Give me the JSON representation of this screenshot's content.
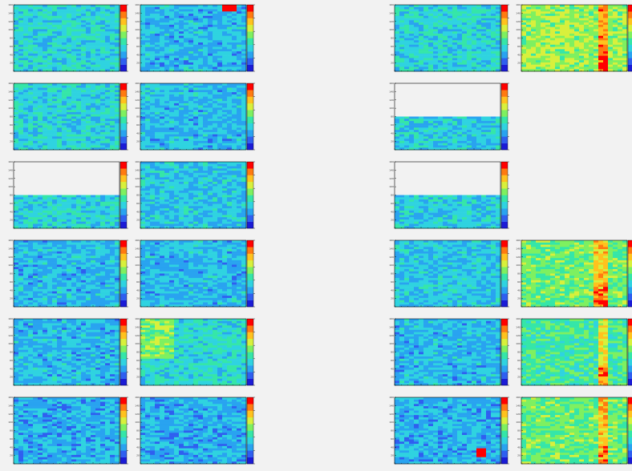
{
  "title": "",
  "colors": {
    "background": "#f2f2f2",
    "empty_region": "#f2f2f2",
    "frame": "#000000",
    "palette_low": "#1b1bd6",
    "palette_high": "#ff0000"
  },
  "chart_data": {
    "type": "heatmap",
    "layout": {
      "rows": 6,
      "cols": 4
    },
    "x_range": [
      0,
      64
    ],
    "y_range": [
      0,
      160
    ],
    "y_ticks": [
      "0",
      "20",
      "40",
      "60",
      "80",
      "100",
      "120",
      "140",
      "160"
    ],
    "colorbar": true,
    "palette": [
      "#1b1bd6",
      "#2f5ff0",
      "#29a3f0",
      "#2fd3e0",
      "#35e6a8",
      "#7ef060",
      "#d8f03c",
      "#ffc21e",
      "#ff7a10",
      "#ff0000"
    ],
    "panels": [
      {
        "row": 0,
        "col": 0,
        "level": 0.36,
        "empty_top_fraction": 0
      },
      {
        "row": 0,
        "col": 1,
        "level": 0.3,
        "empty_top_fraction": 0,
        "hotspot": {
          "x": 0.84,
          "y": 0.97,
          "level": 0.98
        }
      },
      {
        "row": 0,
        "col": 2,
        "level": 0.36,
        "empty_top_fraction": 0
      },
      {
        "row": 0,
        "col": 3,
        "level": 0.58,
        "empty_top_fraction": 0,
        "hot_x_band": [
          0.74,
          0.84
        ]
      },
      {
        "row": 1,
        "col": 0,
        "level": 0.36,
        "empty_top_fraction": 0
      },
      {
        "row": 1,
        "col": 1,
        "level": 0.3,
        "empty_top_fraction": 0
      },
      {
        "row": 1,
        "col": 2,
        "level": 0.34,
        "empty_top_fraction": 0.5
      },
      {
        "row": 2,
        "col": 0,
        "level": 0.36,
        "empty_top_fraction": 0.5
      },
      {
        "row": 2,
        "col": 1,
        "level": 0.32,
        "empty_top_fraction": 0
      },
      {
        "row": 2,
        "col": 2,
        "level": 0.34,
        "empty_top_fraction": 0.5
      },
      {
        "row": 3,
        "col": 0,
        "level": 0.3,
        "empty_top_fraction": 0
      },
      {
        "row": 3,
        "col": 1,
        "level": 0.3,
        "empty_top_fraction": 0
      },
      {
        "row": 3,
        "col": 2,
        "level": 0.32,
        "empty_top_fraction": 0
      },
      {
        "row": 3,
        "col": 3,
        "level": 0.52,
        "empty_top_fraction": 0,
        "hot_x_band": [
          0.7,
          0.84
        ]
      },
      {
        "row": 4,
        "col": 0,
        "level": 0.3,
        "empty_top_fraction": 0
      },
      {
        "row": 4,
        "col": 1,
        "level": 0.38,
        "empty_top_fraction": 0,
        "warm_x_band": [
          0.0,
          0.3
        ]
      },
      {
        "row": 4,
        "col": 2,
        "level": 0.3,
        "empty_top_fraction": 0
      },
      {
        "row": 4,
        "col": 3,
        "level": 0.46,
        "empty_top_fraction": 0,
        "hot_x_band": [
          0.74,
          0.84
        ]
      },
      {
        "row": 5,
        "col": 0,
        "level": 0.28,
        "empty_top_fraction": 0
      },
      {
        "row": 5,
        "col": 1,
        "level": 0.28,
        "empty_top_fraction": 0
      },
      {
        "row": 5,
        "col": 2,
        "level": 0.28,
        "empty_top_fraction": 0,
        "hotspot": {
          "x": 0.82,
          "y": 0.16,
          "level": 0.95
        }
      },
      {
        "row": 5,
        "col": 3,
        "level": 0.52,
        "empty_top_fraction": 0,
        "hot_x_band": [
          0.72,
          0.84
        ]
      }
    ]
  }
}
